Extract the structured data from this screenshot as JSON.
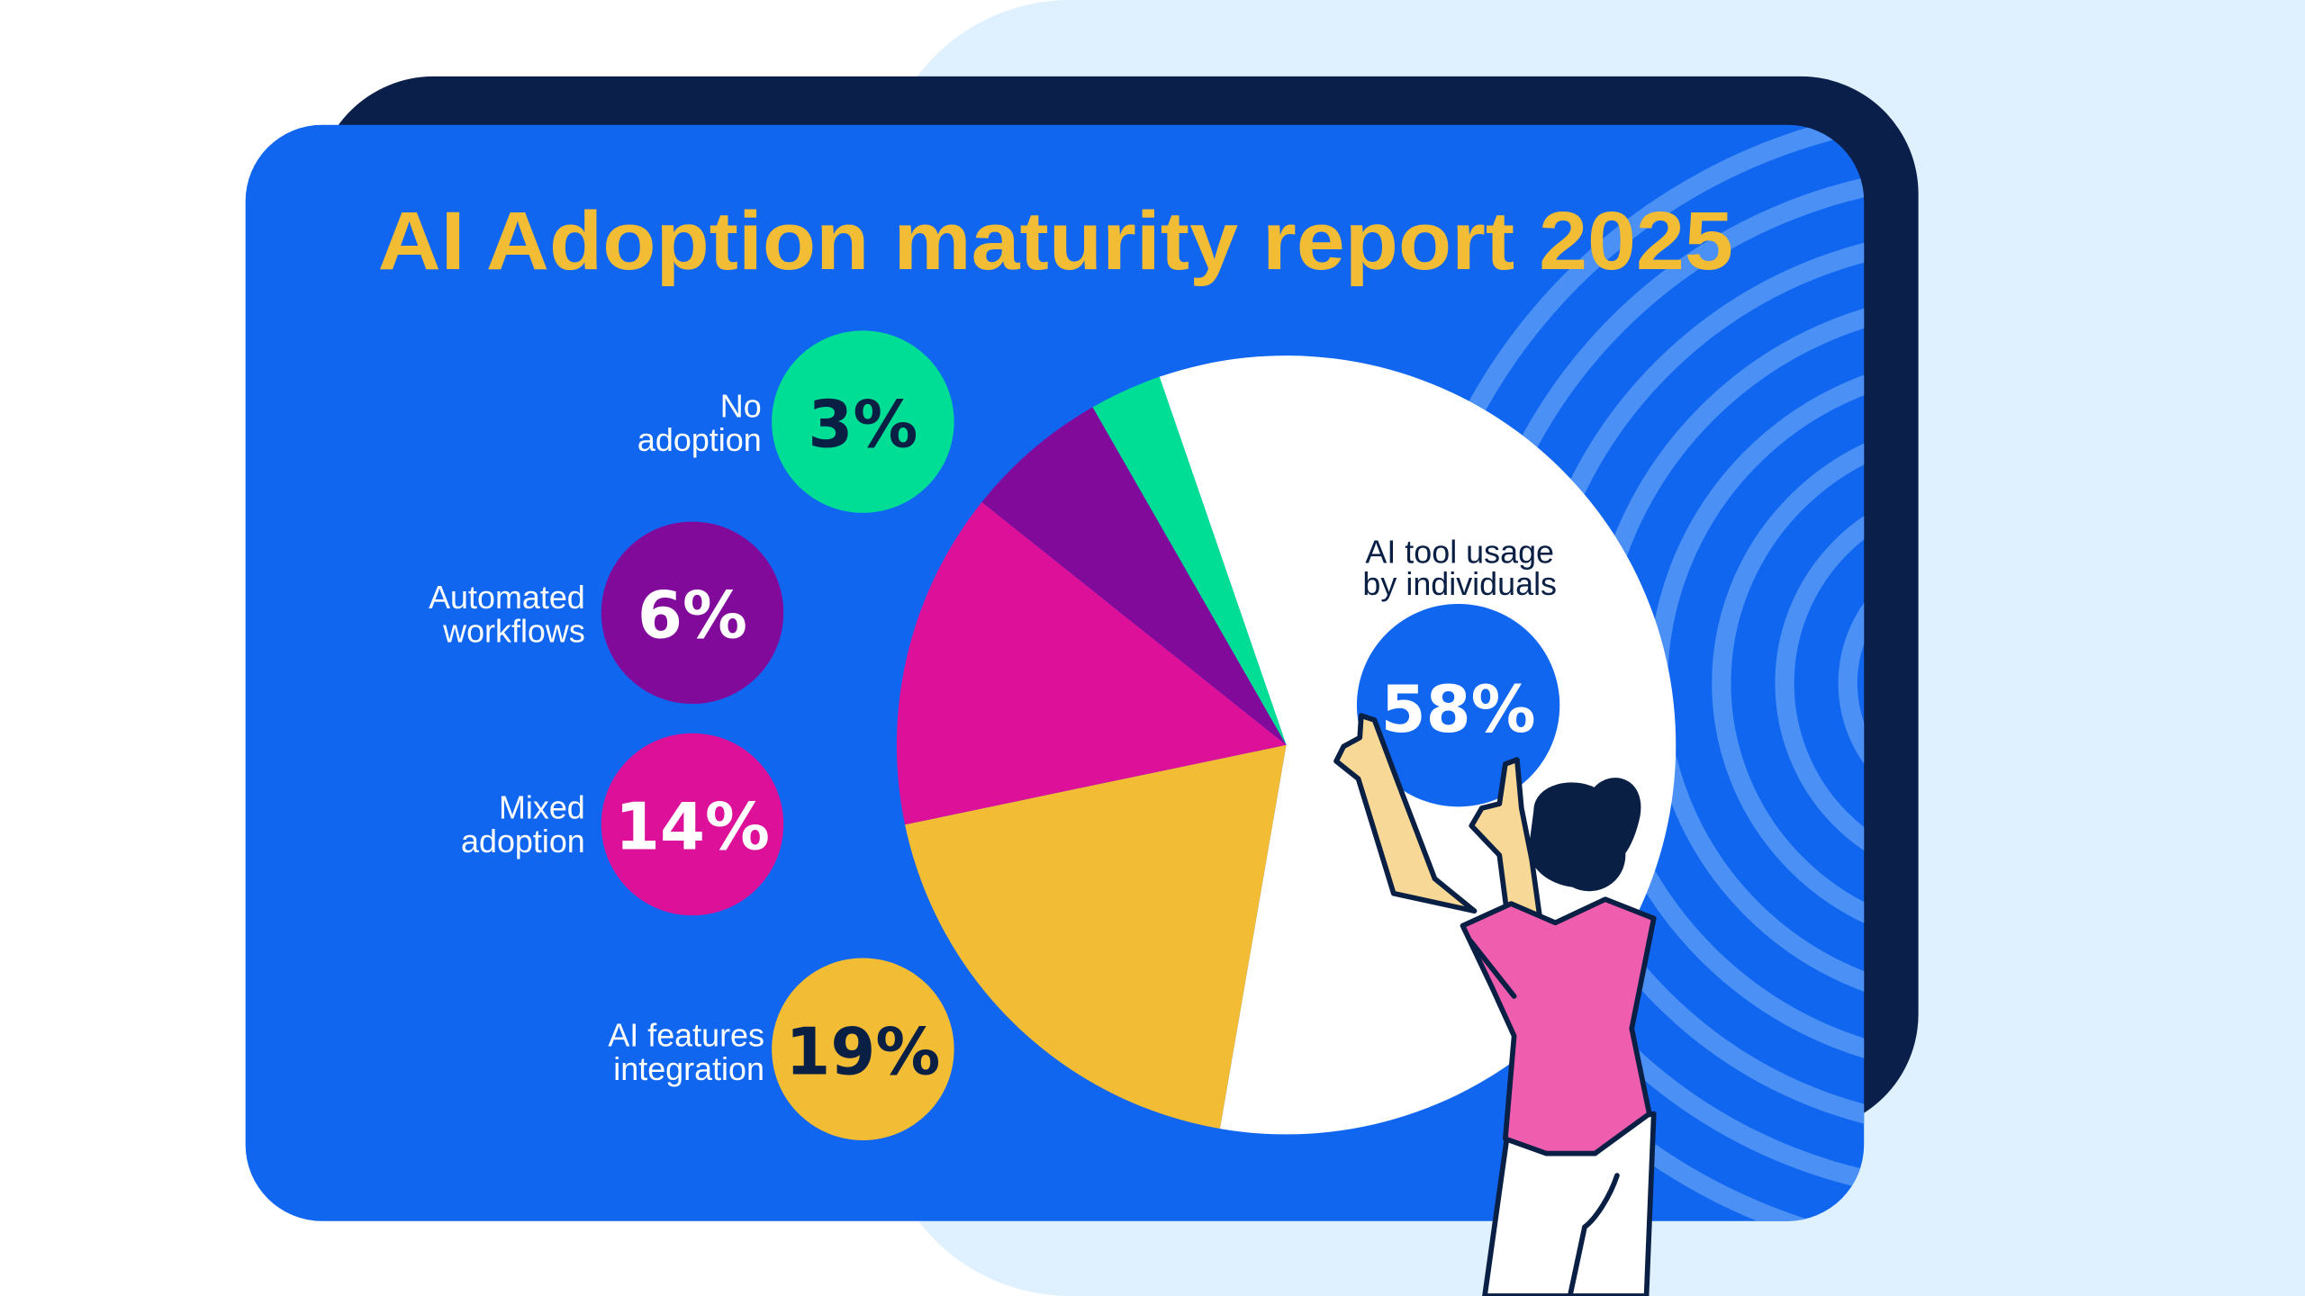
{
  "title": "AI Adoption maturity report 2025",
  "colors": {
    "background_shape": "#DFF0FE",
    "dark_card": "#0A1F4A",
    "blue_card": "#1166F0",
    "stripes": "#4A90F5",
    "title": "#F2BC35",
    "navy_text": "#0A1F44"
  },
  "chart_data": {
    "type": "pie",
    "title": "AI Adoption maturity report 2025",
    "categories": [
      "AI tool usage by individuals",
      "AI features integration",
      "Mixed adoption",
      "Automated workflows",
      "No adoption"
    ],
    "values": [
      58,
      19,
      14,
      6,
      3
    ],
    "unit": "%",
    "colors": [
      "#FFFFFF",
      "#F2BC35",
      "#DD1199",
      "#820A9A",
      "#00DE96"
    ],
    "slices": [
      {
        "label_line1": "AI tool usage",
        "label_line2": "by individuals",
        "value_text": "58%"
      },
      {
        "label_line1": "AI features",
        "label_line2": "integration",
        "value_text": "19%"
      },
      {
        "label_line1": "Mixed",
        "label_line2": "adoption",
        "value_text": "14%"
      },
      {
        "label_line1": "Automated",
        "label_line2": "workflows",
        "value_text": "6%"
      },
      {
        "label_line1": "No",
        "label_line2": "adoption",
        "value_text": "3%"
      }
    ]
  }
}
